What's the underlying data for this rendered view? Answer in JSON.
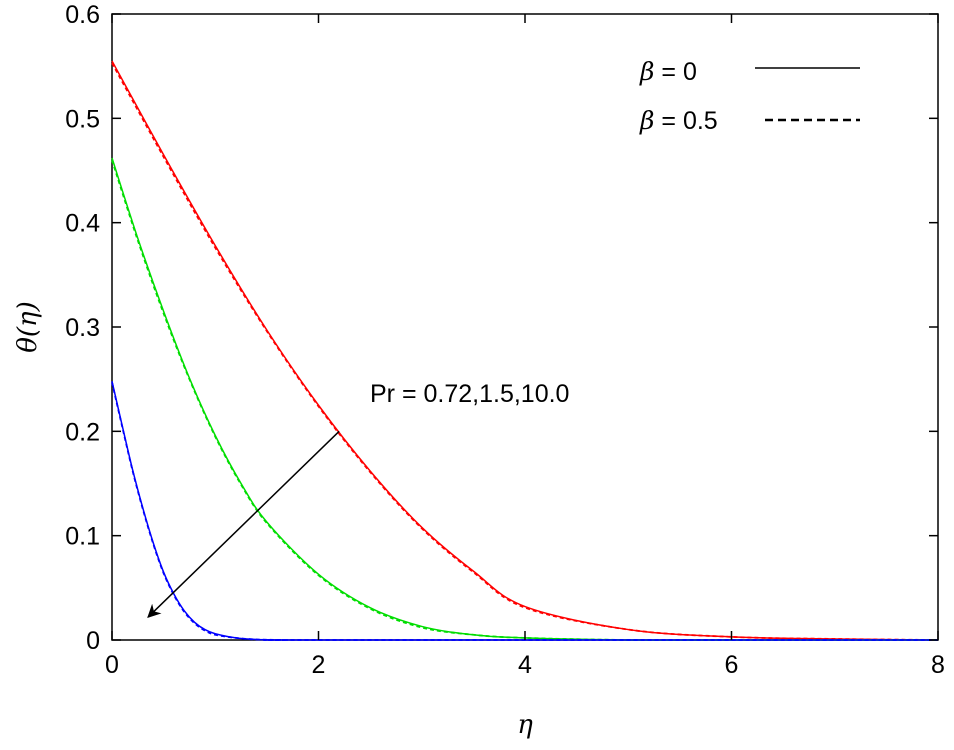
{
  "chart_data": {
    "type": "line",
    "xlabel": "η",
    "ylabel": "θ(η)",
    "xlim": [
      0,
      8
    ],
    "ylim": [
      0,
      0.6
    ],
    "xticks": [
      "0",
      "2",
      "4",
      "6",
      "8"
    ],
    "yticks": [
      "0",
      "0.1",
      "0.2",
      "0.3",
      "0.4",
      "0.5",
      "0.6"
    ],
    "grid": false,
    "legend_position": "top-right",
    "legend": [
      {
        "symbol": "β",
        "text": " = 0",
        "style": "solid"
      },
      {
        "symbol": "β",
        "text": " = 0.5",
        "style": "dashed"
      }
    ],
    "annotation": {
      "text": "Pr = 0.72,1.5,10.0",
      "arrow_from": [
        2.2,
        0.2
      ],
      "arrow_to": [
        0.35,
        0.022
      ]
    },
    "series": [
      {
        "color": "#ff0000",
        "style": "solid",
        "x": [
          0,
          0.5,
          1,
          1.5,
          2,
          2.5,
          3,
          3.5,
          4,
          5,
          6,
          7,
          8
        ],
        "y": [
          0.555,
          0.465,
          0.378,
          0.297,
          0.225,
          0.162,
          0.108,
          0.066,
          0.032,
          0.01,
          0.003,
          0.001,
          0
        ]
      },
      {
        "color": "#ff0000",
        "style": "dashed",
        "x": [
          0,
          0.5,
          1,
          1.5,
          2,
          2.5,
          3,
          3.5,
          4,
          5,
          6,
          7,
          8
        ],
        "y": [
          0.553,
          0.463,
          0.376,
          0.296,
          0.224,
          0.161,
          0.107,
          0.065,
          0.031,
          0.01,
          0.003,
          0.001,
          0
        ]
      },
      {
        "color": "#00dd00",
        "style": "solid",
        "x": [
          0,
          0.25,
          0.5,
          0.75,
          1,
          1.25,
          1.5,
          2,
          2.5,
          3,
          3.5,
          4,
          5,
          6,
          8
        ],
        "y": [
          0.462,
          0.385,
          0.315,
          0.251,
          0.196,
          0.15,
          0.113,
          0.063,
          0.031,
          0.013,
          0.005,
          0.002,
          0,
          0,
          0
        ]
      },
      {
        "color": "#00dd00",
        "style": "dashed",
        "x": [
          0,
          0.25,
          0.5,
          0.75,
          1,
          1.25,
          1.5,
          2,
          2.5,
          3,
          3.5,
          4,
          5,
          6,
          8
        ],
        "y": [
          0.46,
          0.383,
          0.313,
          0.25,
          0.195,
          0.149,
          0.112,
          0.062,
          0.03,
          0.012,
          0.005,
          0.002,
          0,
          0,
          0
        ]
      },
      {
        "color": "#0000ff",
        "style": "solid",
        "x": [
          0,
          0.1,
          0.2,
          0.3,
          0.4,
          0.5,
          0.6,
          0.7,
          0.8,
          0.9,
          1,
          1.2,
          1.4,
          1.7,
          2,
          8
        ],
        "y": [
          0.248,
          0.205,
          0.163,
          0.126,
          0.093,
          0.065,
          0.044,
          0.028,
          0.017,
          0.01,
          0.006,
          0.002,
          0.0005,
          0,
          0,
          0
        ]
      },
      {
        "color": "#0000ff",
        "style": "dashed",
        "x": [
          0,
          0.1,
          0.2,
          0.3,
          0.4,
          0.5,
          0.6,
          0.7,
          0.8,
          0.9,
          1,
          1.2,
          1.4,
          1.7,
          2,
          8
        ],
        "y": [
          0.247,
          0.204,
          0.162,
          0.125,
          0.092,
          0.064,
          0.043,
          0.027,
          0.016,
          0.009,
          0.005,
          0.002,
          0.0005,
          0,
          0,
          0
        ]
      }
    ]
  }
}
